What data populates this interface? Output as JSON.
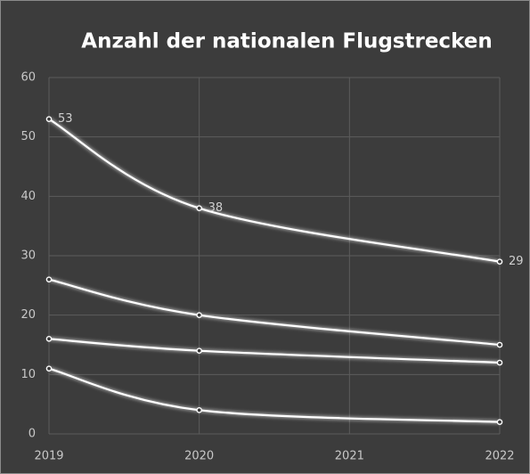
{
  "chart_data": {
    "type": "line",
    "title": "Anzahl der nationalen Flugstrecken",
    "x": [
      2019,
      2020,
      2022
    ],
    "xlim": [
      2019,
      2022
    ],
    "xticks": [
      2019,
      2020,
      2021,
      2022
    ],
    "ylim": [
      0,
      60
    ],
    "yticks": [
      0,
      10,
      20,
      30,
      40,
      50,
      60
    ],
    "grid": true,
    "smooth": true,
    "series": [
      {
        "color": "#ffffff",
        "values": [
          53,
          38,
          29
        ],
        "data_labels": true
      },
      {
        "color": "#ffffff",
        "values": [
          26,
          20,
          15
        ]
      },
      {
        "color": "#ffffff",
        "values": [
          16,
          14,
          12
        ]
      },
      {
        "color": "#ffffff",
        "values": [
          11,
          4,
          2
        ]
      }
    ]
  }
}
